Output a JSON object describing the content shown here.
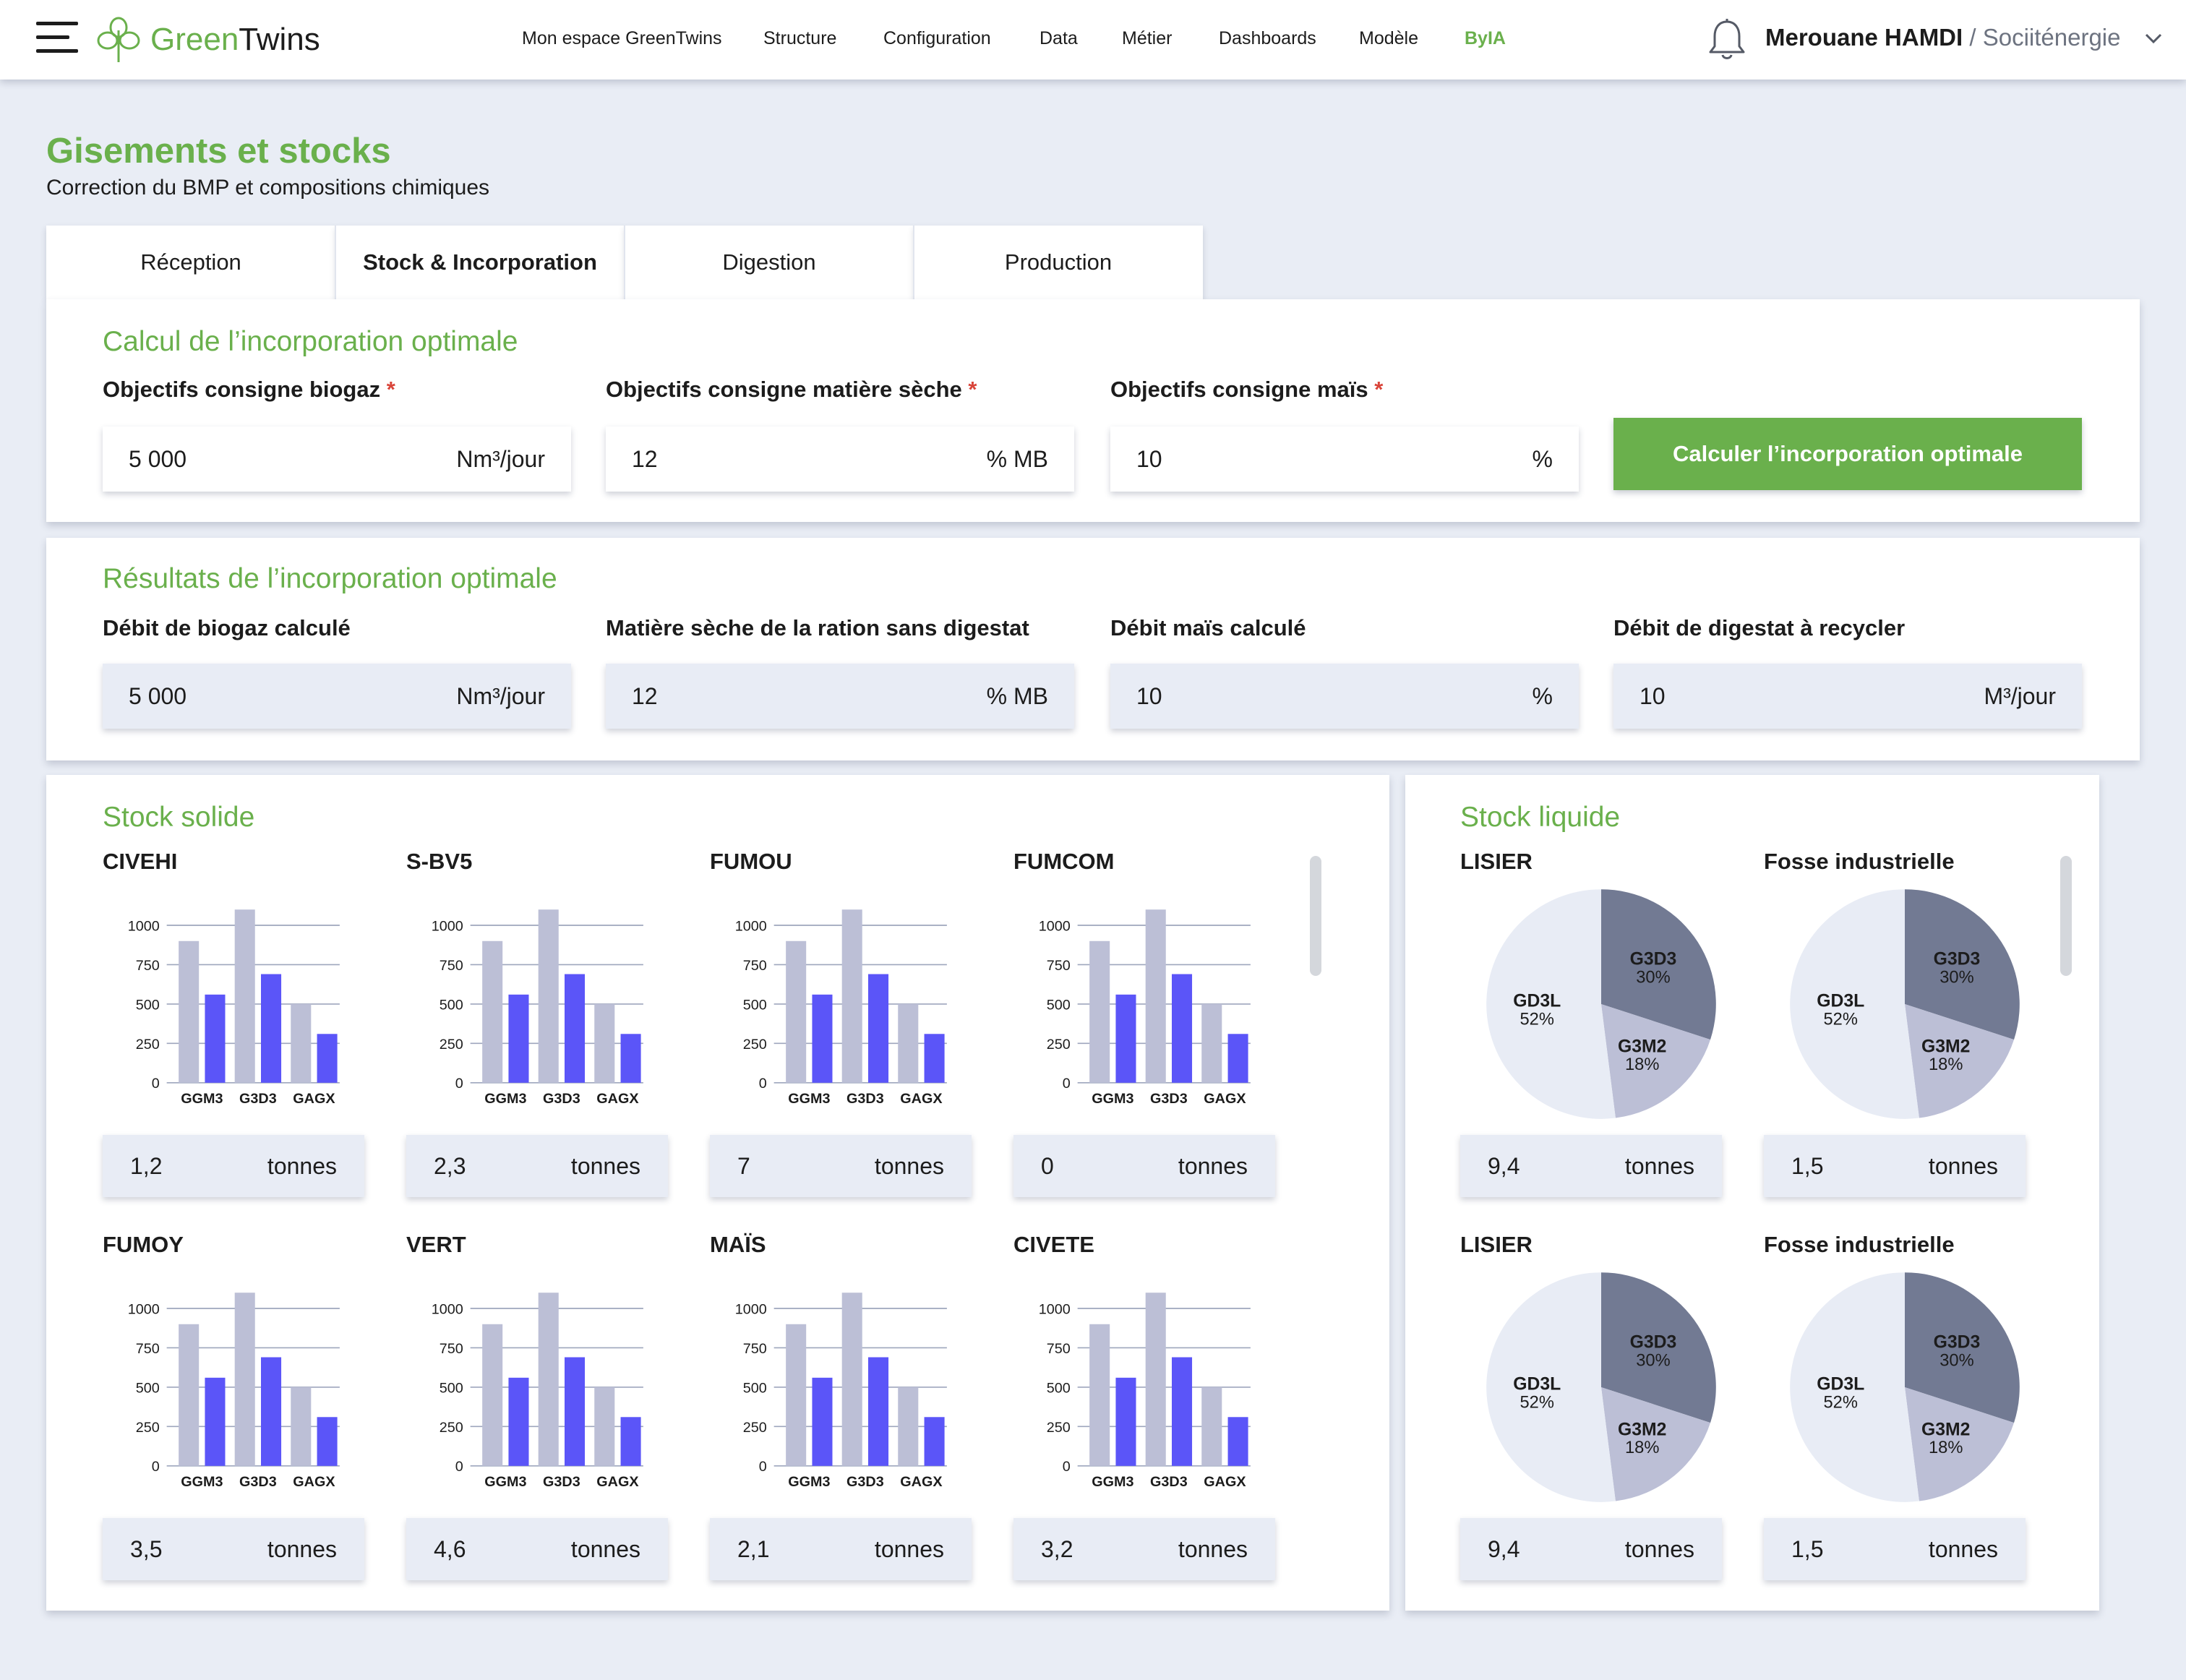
{
  "brand": {
    "name_green": "Green",
    "name_dark": "Twins",
    "accent": "#6ab04c"
  },
  "nav": [
    {
      "label": "Mon espace GreenTwins",
      "active": false
    },
    {
      "label": "Structure",
      "active": false
    },
    {
      "label": "Configuration",
      "active": false
    },
    {
      "label": "Data",
      "active": false
    },
    {
      "label": "Métier",
      "active": false
    },
    {
      "label": "Dashboards",
      "active": false
    },
    {
      "label": "Modèle",
      "active": false
    },
    {
      "label": "ByIA",
      "active": true
    }
  ],
  "user": {
    "name": "Merouane HAMDI",
    "separator": " / ",
    "org": "Sociiténergie"
  },
  "page": {
    "title": "Gisements et stocks",
    "subtitle": "Correction du BMP et compositions chimiques"
  },
  "tabs": [
    {
      "label": "Réception",
      "active": false
    },
    {
      "label": "Stock & Incorporation",
      "active": true
    },
    {
      "label": "Digestion",
      "active": false
    },
    {
      "label": "Production",
      "active": false
    }
  ],
  "calcul": {
    "title": "Calcul de l’incorporation optimale",
    "required_mark": "*",
    "fields": [
      {
        "label": "Objectifs consigne biogaz",
        "value": "5 000",
        "unit": "Nm³/jour"
      },
      {
        "label": "Objectifs consigne matière sèche",
        "value": "12",
        "unit": "% MB"
      },
      {
        "label": "Objectifs consigne maïs",
        "value": "10",
        "unit": "%"
      }
    ],
    "button_label": "Calculer l’incorporation optimale"
  },
  "resultats": {
    "title": "Résultats de l’incorporation optimale",
    "fields": [
      {
        "label": "Débit de biogaz calculé",
        "value": "5 000",
        "unit": "Nm³/jour"
      },
      {
        "label": "Matière sèche de la ration sans digestat",
        "value": "12",
        "unit": "% MB"
      },
      {
        "label": "Débit maïs calculé",
        "value": "10",
        "unit": "%"
      },
      {
        "label": "Débit de digestat à recycler",
        "value": "10",
        "unit": "M³/jour"
      }
    ]
  },
  "stock_solide": {
    "title": "Stock solide",
    "unit": "tonnes",
    "y_ticks": [
      "1000",
      "750",
      "500",
      "250",
      "0"
    ],
    "categories": [
      "GGM3",
      "G3D3",
      "GAGX"
    ],
    "colors": {
      "series_a": "#bcbfd6",
      "series_b": "#5b55f8"
    },
    "items": [
      {
        "name": "CIVEHI",
        "value": "1,2"
      },
      {
        "name": "S-BV5",
        "value": "2,3"
      },
      {
        "name": "FUMOU",
        "value": "7"
      },
      {
        "name": "FUMCOM",
        "value": "0"
      },
      {
        "name": "FUMOY",
        "value": "3,5"
      },
      {
        "name": "VERT",
        "value": "4,6"
      },
      {
        "name": "MAÏS",
        "value": "2,1"
      },
      {
        "name": "CIVETE",
        "value": "3,2"
      }
    ]
  },
  "stock_liquide": {
    "title": "Stock liquide",
    "unit": "tonnes",
    "items": [
      {
        "name": "LISIER",
        "value": "9,4"
      },
      {
        "name": "Fosse industrielle",
        "value": "1,5"
      },
      {
        "name": "LISIER",
        "value": "9,4"
      },
      {
        "name": "Fosse industrielle",
        "value": "1,5"
      }
    ]
  },
  "chart_data": [
    {
      "type": "bar",
      "note_scope": "same values in each of the 8 Stock solide mini-charts",
      "categories": [
        "GGM3",
        "G3D3",
        "GAGX"
      ],
      "ylim": [
        0,
        1000
      ],
      "yticks": [
        0,
        250,
        500,
        750,
        1000
      ],
      "grid": true,
      "series": [
        {
          "values": [
            900,
            1100,
            500
          ]
        },
        {
          "values": [
            560,
            690,
            310
          ]
        }
      ]
    },
    {
      "type": "pie",
      "note_scope": "same values in each of the 4 Stock liquide pies",
      "slices": [
        {
          "label": "G3D3",
          "value": 30,
          "text": "30%",
          "color": "#727a93"
        },
        {
          "label": "G3M2",
          "value": 18,
          "text": "18%",
          "color": "#bcbfd6"
        },
        {
          "label": "GD3L",
          "value": 52,
          "text": "52%",
          "color": "#e8ecf5"
        }
      ]
    }
  ]
}
